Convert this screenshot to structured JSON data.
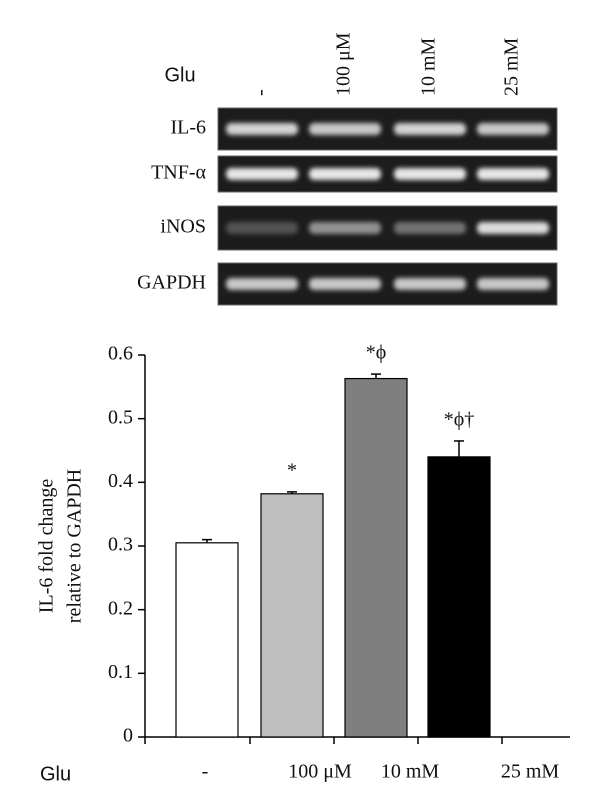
{
  "blot": {
    "treatment_label": "Glu",
    "lanes": [
      "-",
      "100 μM",
      "10 mM",
      "25 mM"
    ],
    "rows": [
      "IL-6",
      "TNF-α",
      "iNOS",
      "GAPDH"
    ]
  },
  "chart_data": {
    "type": "bar",
    "y_label": [
      "IL-6 fold change",
      "relative to GAPDH"
    ],
    "x_label": "Glu",
    "categories": [
      "-",
      "100 μM",
      "10 mM",
      "25 mM"
    ],
    "values": [
      0.305,
      0.382,
      0.563,
      0.44
    ],
    "errors": [
      0.005,
      0.003,
      0.007,
      0.025
    ],
    "annotations": [
      null,
      "*",
      "*ϕ",
      "*ϕ†"
    ],
    "colors": [
      "#ffffff",
      "#bfbfbf",
      "#7f7f7f",
      "#000000"
    ],
    "ylim": [
      0,
      0.6
    ],
    "yticks": [
      0,
      0.1,
      0.2,
      0.3,
      0.4,
      0.5,
      0.6
    ]
  }
}
